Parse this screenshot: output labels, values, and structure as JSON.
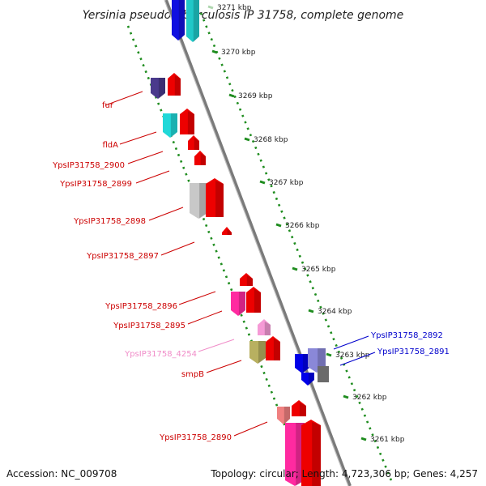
{
  "title": "Yersinia pseudotuberculosis IP 31758, complete genome",
  "footer": {
    "accession": "Accession: NC_009708",
    "summary": "Topology: circular; Length: 4,723,306 bp; Genes: 4,257"
  },
  "colors": {
    "backbone": "#8a8a8a",
    "tick_dots": "#1e8c1e",
    "forward_label": "#cc0000",
    "reverse_label": "#0000cc",
    "faint_label": "#f08cc8"
  },
  "ticks": [
    {
      "kbp": 3271,
      "label": "3271 kbp",
      "faded": true
    },
    {
      "kbp": 3270,
      "label": "3270 kbp"
    },
    {
      "kbp": 3269,
      "label": "3269 kbp"
    },
    {
      "kbp": 3268,
      "label": "3268 kbp"
    },
    {
      "kbp": 3267,
      "label": "3267 kbp"
    },
    {
      "kbp": 3266,
      "label": "3266 kbp"
    },
    {
      "kbp": 3265,
      "label": "3265 kbp"
    },
    {
      "kbp": 3264,
      "label": "3264 kbp"
    },
    {
      "kbp": 3263,
      "label": "3263 kbp"
    },
    {
      "kbp": 3262,
      "label": "3262 kbp"
    },
    {
      "kbp": 3261,
      "label": "3261 kbp"
    }
  ],
  "gene_labels": [
    {
      "text": "fur",
      "side": "left",
      "color": "#cc0000"
    },
    {
      "text": "fldA",
      "side": "left",
      "color": "#cc0000"
    },
    {
      "text": "YpsIP31758_2900",
      "side": "left",
      "color": "#cc0000"
    },
    {
      "text": "YpsIP31758_2899",
      "side": "left",
      "color": "#cc0000"
    },
    {
      "text": "YpsIP31758_2898",
      "side": "left",
      "color": "#cc0000"
    },
    {
      "text": "YpsIP31758_2897",
      "side": "left",
      "color": "#cc0000"
    },
    {
      "text": "YpsIP31758_2896",
      "side": "left",
      "color": "#cc0000"
    },
    {
      "text": "YpsIP31758_2895",
      "side": "left",
      "color": "#cc0000"
    },
    {
      "text": "YpsIP31758_4254",
      "side": "left",
      "color": "#f08cc8"
    },
    {
      "text": "smpB",
      "side": "left",
      "color": "#cc0000"
    },
    {
      "text": "YpsIP31758_2890",
      "side": "left",
      "color": "#cc0000"
    },
    {
      "text": "YpsIP31758_2892",
      "side": "right",
      "color": "#0000cc"
    },
    {
      "text": "YpsIP31758_2891",
      "side": "right",
      "color": "#0000cc"
    }
  ]
}
